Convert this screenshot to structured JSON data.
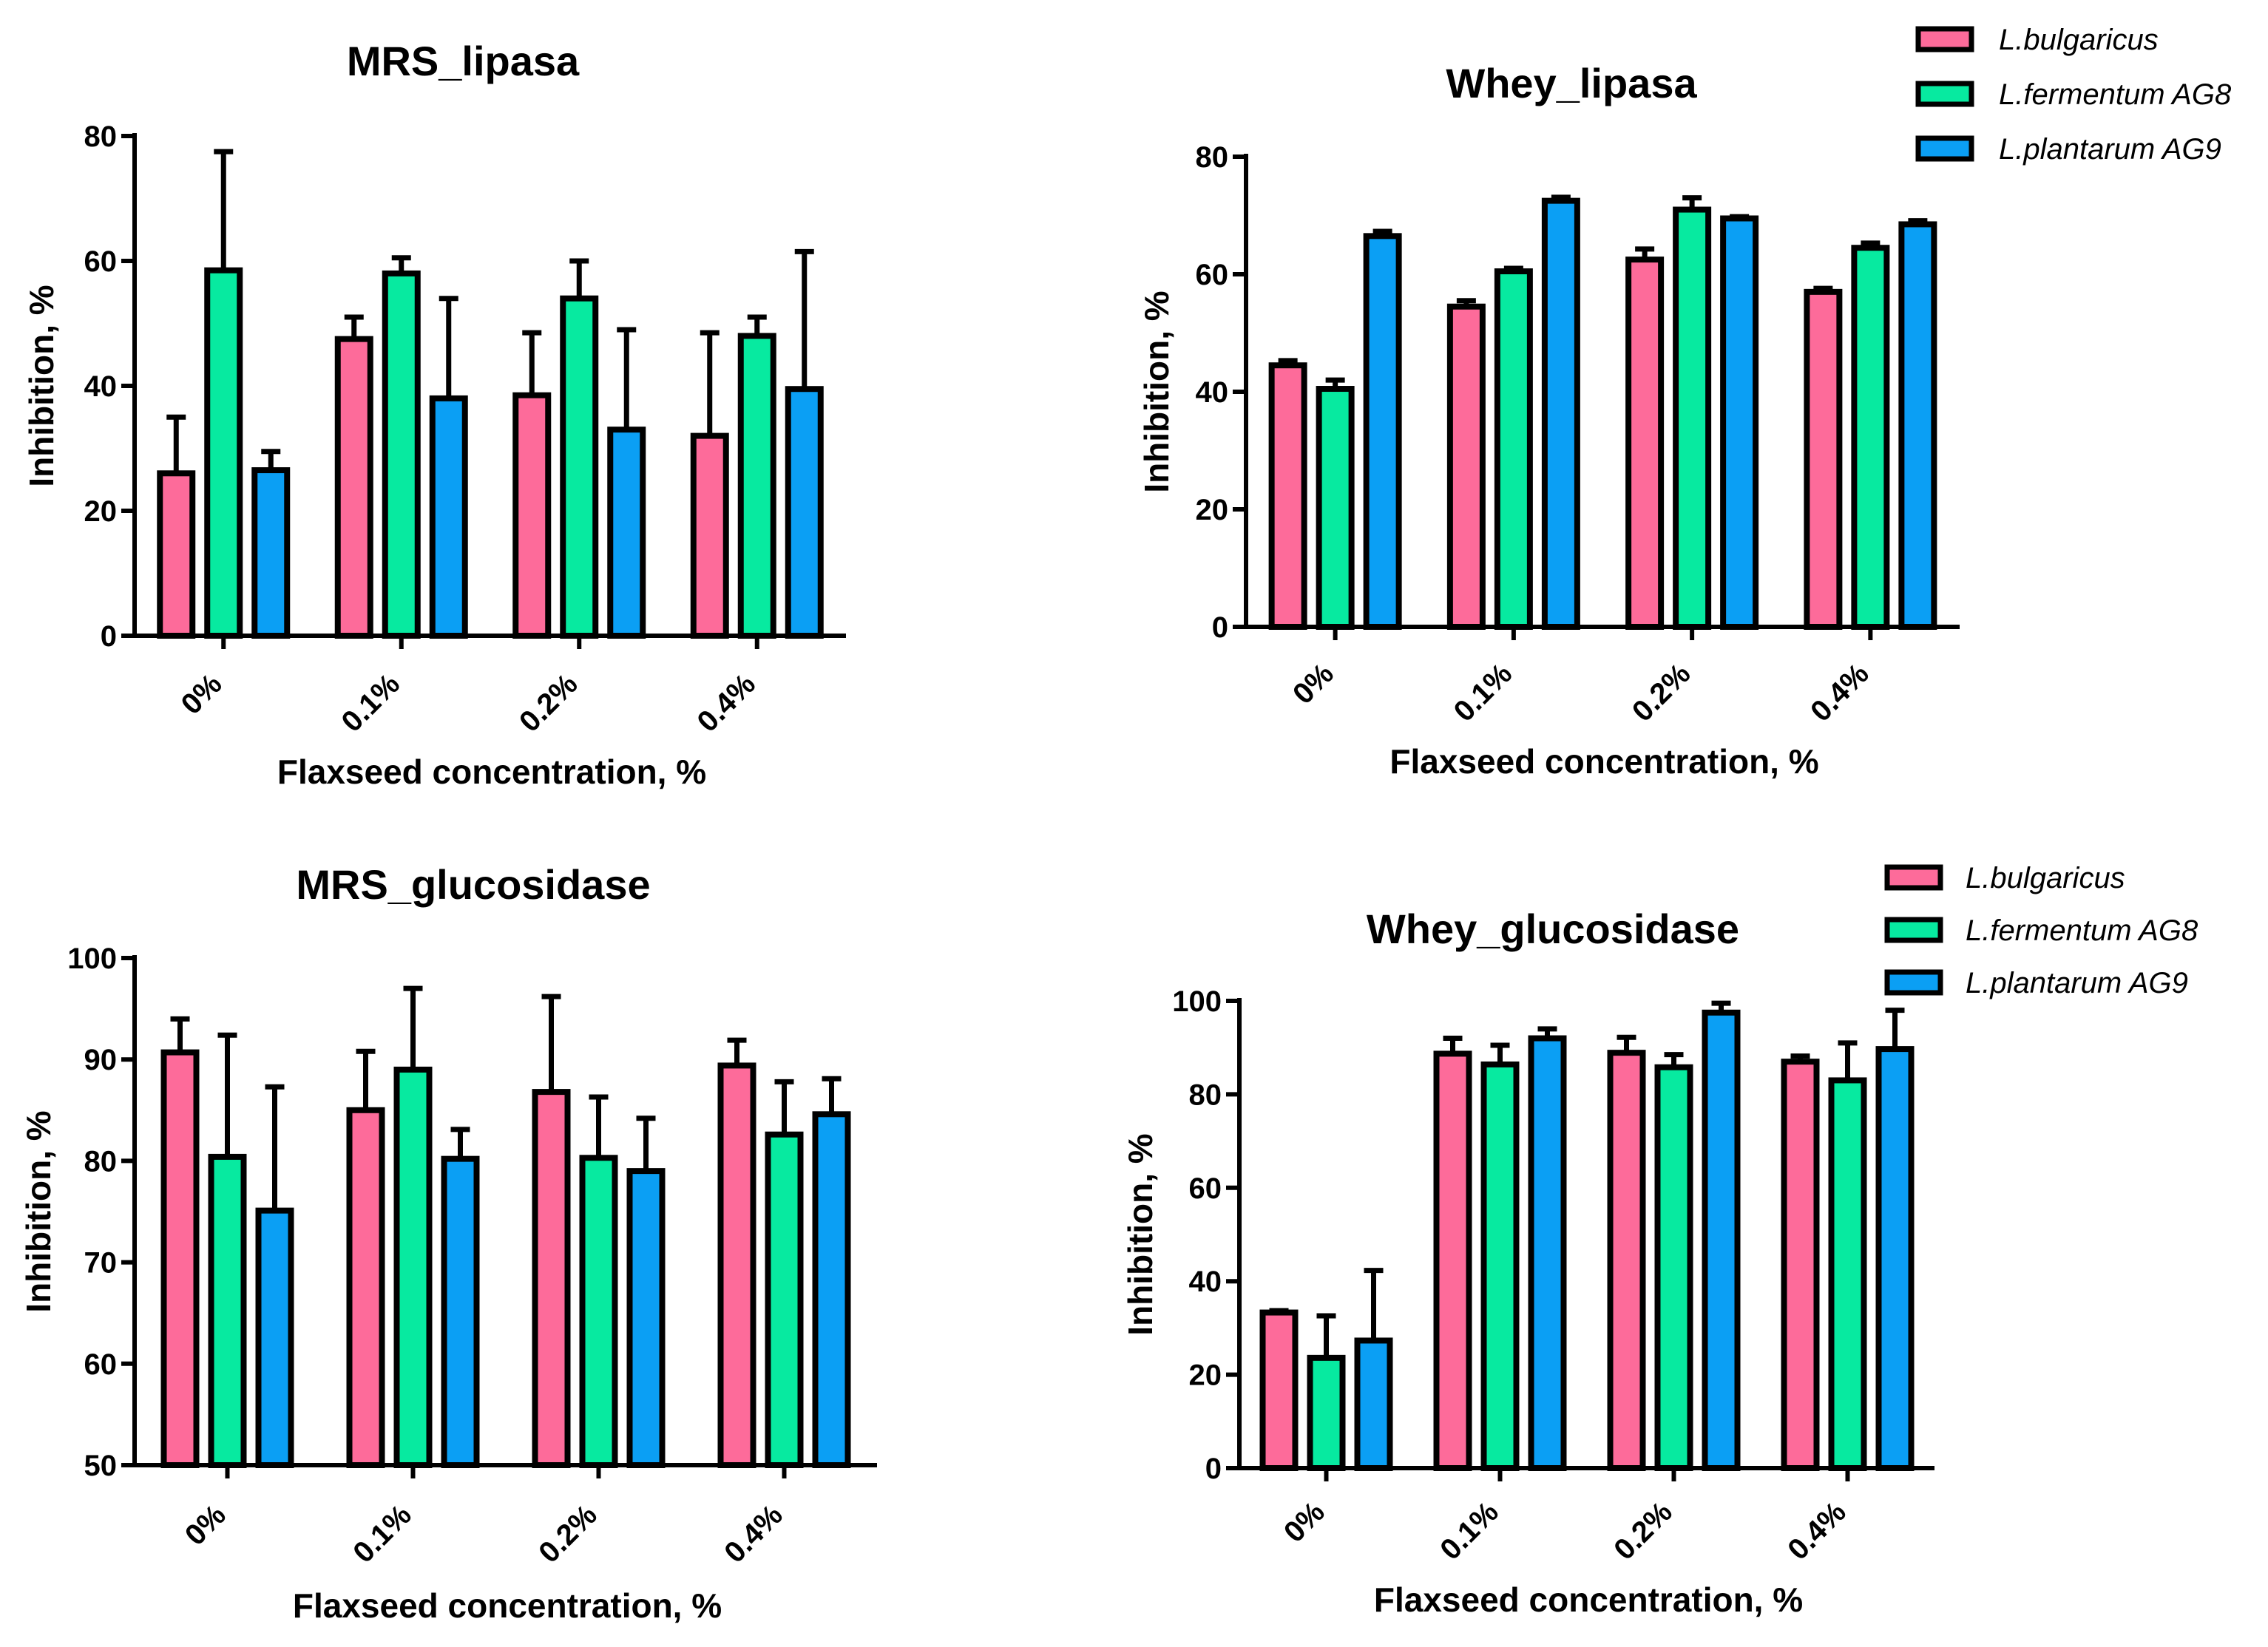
{
  "colors": {
    "L.bulgaricus": "#fd6b9a",
    "L.fermentum AG8": "#07eaa0",
    "L.plantarum AG9": "#0b9ff4"
  },
  "chart_data": [
    {
      "type": "bar",
      "title": "MRS_lipasa",
      "xlabel": "Flaxseed concentration, %",
      "ylabel": "Inhibition, %",
      "ylim": [
        0,
        80
      ],
      "yticks": [
        "0",
        "20",
        "40",
        "60",
        "80"
      ],
      "categories": [
        "0%",
        "0.1%",
        "0.2%",
        "0.4%"
      ],
      "legend": false,
      "series": [
        {
          "name": "L.bulgaricus",
          "values": [
            26,
            47.5,
            38.5,
            32
          ],
          "errors": [
            9,
            3.5,
            10,
            16.5
          ]
        },
        {
          "name": "L.fermentum AG8",
          "values": [
            58.5,
            58,
            54,
            48
          ],
          "errors": [
            19,
            2.5,
            6,
            3
          ]
        },
        {
          "name": "L.plantarum AG9",
          "values": [
            26.5,
            38,
            33,
            39.5
          ],
          "errors": [
            3,
            16,
            16,
            22
          ]
        }
      ]
    },
    {
      "type": "bar",
      "title": "Whey_lipasa",
      "xlabel": "Flaxseed concentration, %",
      "ylabel": "Inhibition, %",
      "ylim": [
        0,
        80
      ],
      "yticks": [
        "0",
        "20",
        "40",
        "60",
        "80"
      ],
      "categories": [
        "0%",
        "0.1%",
        "0.2%",
        "0.4%"
      ],
      "legend": true,
      "legend_entries": [
        "L.bulgaricus",
        "L.fermentum AG8",
        "L.plantarum AG9"
      ],
      "series": [
        {
          "name": "L.bulgaricus",
          "values": [
            44.5,
            54.5,
            62.5,
            57
          ],
          "errors": [
            0.8,
            1,
            1.8,
            0.6
          ]
        },
        {
          "name": "L.fermentum AG8",
          "values": [
            40.5,
            60.5,
            71,
            64.5
          ],
          "errors": [
            1.5,
            0.5,
            2,
            0.8
          ]
        },
        {
          "name": "L.plantarum AG9",
          "values": [
            66.5,
            72.5,
            69.5,
            68.5
          ],
          "errors": [
            0.8,
            0.6,
            0.3,
            0.6
          ]
        }
      ]
    },
    {
      "type": "bar",
      "title": "MRS_glucosidase",
      "xlabel": "Flaxseed concentration, %",
      "ylabel": "Inhibition, %",
      "ylim": [
        50,
        100
      ],
      "yticks": [
        "50",
        "60",
        "70",
        "80",
        "90",
        "100"
      ],
      "categories": [
        "0%",
        "0.1%",
        "0.2%",
        "0.4%"
      ],
      "legend": false,
      "series": [
        {
          "name": "L.bulgaricus",
          "values": [
            90.7,
            85,
            86.8,
            89.4
          ],
          "errors": [
            3.3,
            5.8,
            9.4,
            2.5
          ]
        },
        {
          "name": "L.fermentum AG8",
          "values": [
            80.4,
            89,
            80.3,
            82.6
          ],
          "errors": [
            12,
            8,
            6,
            5.2
          ]
        },
        {
          "name": "L.plantarum AG9",
          "values": [
            75.1,
            80.2,
            79,
            84.6
          ],
          "errors": [
            12.2,
            2.9,
            5.2,
            3.5
          ]
        }
      ]
    },
    {
      "type": "bar",
      "title": "Whey_glucosidase",
      "xlabel": "Flaxseed concentration, %",
      "ylabel": "Inhibition, %",
      "ylim": [
        0,
        100
      ],
      "yticks": [
        "0",
        "20",
        "40",
        "60",
        "80",
        "100"
      ],
      "categories": [
        "0%",
        "0.1%",
        "0.2%",
        "0.4%"
      ],
      "legend": true,
      "legend_entries": [
        "L.bulgaricus",
        "L.fermentum AG8",
        "L.plantarum AG9"
      ],
      "series": [
        {
          "name": "L.bulgaricus",
          "values": [
            33.3,
            88.7,
            88.9,
            87
          ],
          "errors": [
            0.4,
            3.3,
            3.3,
            1.2
          ]
        },
        {
          "name": "L.fermentum AG8",
          "values": [
            23.6,
            86.4,
            85.8,
            83
          ],
          "errors": [
            9,
            4.1,
            2.7,
            8
          ]
        },
        {
          "name": "L.plantarum AG9",
          "values": [
            27.3,
            92,
            97.5,
            89.7
          ],
          "errors": [
            15,
            2,
            2,
            8.3
          ]
        }
      ]
    }
  ]
}
